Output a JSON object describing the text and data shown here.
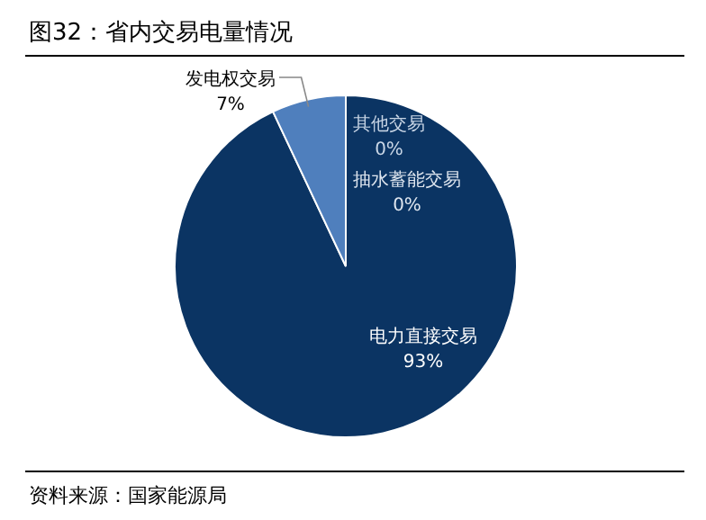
{
  "chart_data": {
    "type": "pie",
    "title": "图32：省内交易电量情况",
    "categories": [
      "电力直接交易",
      "发电权交易",
      "其他交易",
      "抽水蓄能交易"
    ],
    "values": [
      93,
      7,
      0,
      0
    ],
    "colors": [
      "#0b3463",
      "#4f7fbd",
      "#c9d6e6",
      "#dfe6ef"
    ],
    "value_labels": [
      "93%",
      "7%",
      "0%",
      "0%"
    ],
    "legend": false,
    "annotations": [
      "资料来源：国家能源局"
    ]
  }
}
